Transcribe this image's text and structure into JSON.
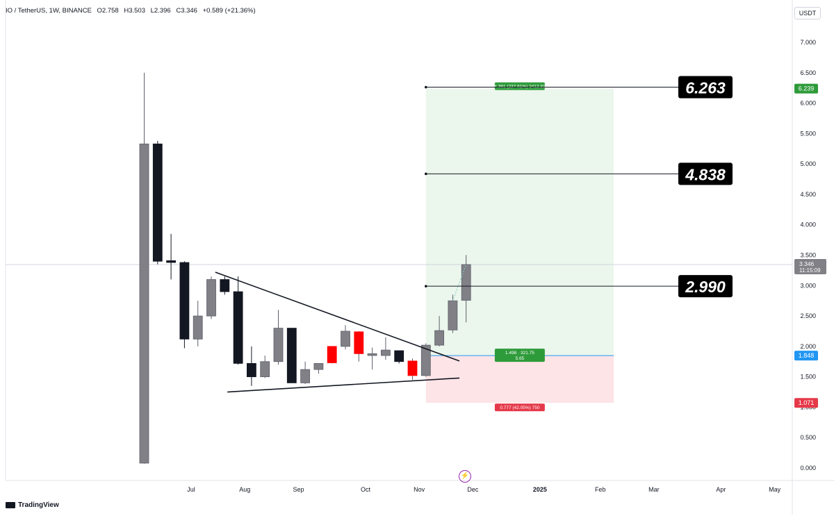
{
  "header": {
    "symbol": "IO / TetherUS, 1W, BINANCE",
    "open": "O2.758",
    "high": "H3.503",
    "low": "L2.396",
    "close": "C3.346",
    "change": "+0.589 (+21.36%)"
  },
  "currency_label": "USDT",
  "branding": "TradingView",
  "colors": {
    "up": "#808086",
    "down": "#131722",
    "down_highlight": "#ff0000",
    "target_zone": "#e8f5e9",
    "stop_zone": "#fde4e6",
    "target_tag": "#2e9b3a",
    "stop_tag": "#e53949",
    "entry_line": "#2196f3"
  },
  "chart_data": {
    "type": "candlestick",
    "ylim": [
      0,
      7.25
    ],
    "y_ticks": [
      "0.000",
      "0.500",
      "1.000",
      "1.500",
      "2.000",
      "2.500",
      "3.000",
      "3.500",
      "4.000",
      "4.500",
      "5.000",
      "5.500",
      "6.000",
      "6.500",
      "7.000"
    ],
    "x_labels": [
      {
        "label": "Jul",
        "week": 3.5
      },
      {
        "label": "Aug",
        "week": 7.5
      },
      {
        "label": "Sep",
        "week": 11.5
      },
      {
        "label": "Oct",
        "week": 16.5
      },
      {
        "label": "Nov",
        "week": 20.5
      },
      {
        "label": "Dec",
        "week": 24.5
      },
      {
        "label": "2025",
        "week": 29.5
      },
      {
        "label": "Feb",
        "week": 34
      },
      {
        "label": "Mar",
        "week": 38
      },
      {
        "label": "Apr",
        "week": 43
      },
      {
        "label": "May",
        "week": 47
      }
    ],
    "candles": [
      {
        "o": 0.08,
        "h": 6.5,
        "l": 0.07,
        "c": 5.33,
        "color": "up"
      },
      {
        "o": 5.33,
        "h": 5.38,
        "l": 3.35,
        "c": 3.4,
        "color": "down"
      },
      {
        "o": 3.41,
        "h": 3.85,
        "l": 3.1,
        "c": 3.38,
        "color": "down"
      },
      {
        "o": 3.38,
        "h": 3.4,
        "l": 1.97,
        "c": 2.12,
        "color": "down"
      },
      {
        "o": 2.12,
        "h": 2.75,
        "l": 2.0,
        "c": 2.5,
        "color": "up"
      },
      {
        "o": 2.5,
        "h": 3.15,
        "l": 2.45,
        "c": 3.1,
        "color": "up"
      },
      {
        "o": 3.1,
        "h": 3.15,
        "l": 2.85,
        "c": 2.9,
        "color": "down"
      },
      {
        "o": 2.9,
        "h": 3.15,
        "l": 1.7,
        "c": 1.72,
        "color": "down"
      },
      {
        "o": 1.72,
        "h": 2.0,
        "l": 1.35,
        "c": 1.5,
        "color": "down"
      },
      {
        "o": 1.5,
        "h": 1.85,
        "l": 1.48,
        "c": 1.75,
        "color": "up"
      },
      {
        "o": 1.75,
        "h": 2.6,
        "l": 1.7,
        "c": 2.3,
        "color": "up"
      },
      {
        "o": 2.3,
        "h": 2.3,
        "l": 1.4,
        "c": 1.4,
        "color": "down"
      },
      {
        "o": 1.4,
        "h": 1.75,
        "l": 1.38,
        "c": 1.62,
        "color": "up"
      },
      {
        "o": 1.62,
        "h": 1.72,
        "l": 1.55,
        "c": 1.72,
        "color": "up"
      },
      {
        "o": 1.73,
        "h": 2.0,
        "l": 1.72,
        "c": 2.0,
        "color": "down_highlight"
      },
      {
        "o": 2.0,
        "h": 2.35,
        "l": 1.95,
        "c": 2.25,
        "color": "up"
      },
      {
        "o": 2.24,
        "h": 2.25,
        "l": 1.75,
        "c": 1.88,
        "color": "down_highlight"
      },
      {
        "o": 1.88,
        "h": 1.98,
        "l": 1.62,
        "c": 1.85,
        "color": "up"
      },
      {
        "o": 1.85,
        "h": 2.15,
        "l": 1.78,
        "c": 1.94,
        "color": "up"
      },
      {
        "o": 1.93,
        "h": 1.93,
        "l": 1.72,
        "c": 1.75,
        "color": "down"
      },
      {
        "o": 1.76,
        "h": 1.8,
        "l": 1.45,
        "c": 1.52,
        "color": "down_highlight"
      },
      {
        "o": 1.52,
        "h": 2.05,
        "l": 1.5,
        "c": 2.02,
        "color": "up"
      },
      {
        "o": 2.02,
        "h": 2.5,
        "l": 2.0,
        "c": 2.26,
        "color": "up"
      },
      {
        "o": 2.27,
        "h": 2.85,
        "l": 2.22,
        "c": 2.75,
        "color": "up"
      },
      {
        "o": 2.758,
        "h": 3.503,
        "l": 2.396,
        "c": 3.346,
        "color": "up"
      }
    ],
    "first_week_x_offset": 0,
    "trendlines": [
      {
        "from": {
          "week": 5.3,
          "price": 3.22
        },
        "to": {
          "week": 23.5,
          "price": 1.76
        }
      },
      {
        "from": {
          "week": 6.2,
          "price": 1.25
        },
        "to": {
          "week": 23.5,
          "price": 1.48
        }
      }
    ],
    "position": {
      "entry": 1.848,
      "target": 6.239,
      "stop": 1.071,
      "start_week": 21.0,
      "end_week": 35.0,
      "target_text": "4.391 (237.61%) 2412.81",
      "entry_text_line1": "1.498 · 321.75",
      "entry_text_line2": "5.65",
      "stop_text": "0.777 (42.05%) 750"
    },
    "current_price": {
      "value": 3.346,
      "label": "3.346",
      "countdown": "11:15:09"
    },
    "levels": [
      {
        "price": 6.263,
        "label": "6.263"
      },
      {
        "price": 4.838,
        "label": "4.838"
      },
      {
        "price": 2.99,
        "label": "2.990"
      }
    ],
    "axis_badges": [
      {
        "price": 6.239,
        "label": "6.239",
        "color": "target_tag"
      },
      {
        "price": 1.848,
        "label": "1.848",
        "color": "entry_line"
      },
      {
        "price": 1.071,
        "label": "1.071",
        "color": "stop_tag"
      }
    ]
  }
}
